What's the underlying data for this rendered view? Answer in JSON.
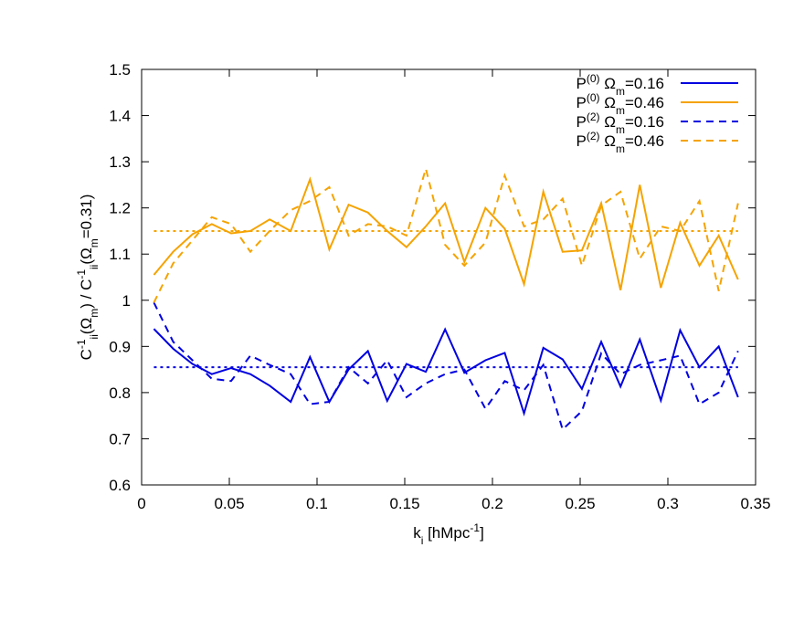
{
  "chart_data": {
    "type": "line",
    "xlabel": [
      "k",
      "i",
      " [hMpc",
      "-1",
      "]"
    ],
    "xlabel_shift": [
      "n",
      "sub",
      "n",
      "sup",
      "n"
    ],
    "ylabel": [
      "C",
      "-1",
      "ii",
      "(Ω",
      "m",
      ") / C",
      "-1",
      "ii",
      "(Ω",
      "m",
      "=0.31)"
    ],
    "ylabel_shift": [
      "n",
      "sup",
      "sub",
      "n",
      "sub",
      "n",
      "sup",
      "sub",
      "n",
      "sub",
      "n"
    ],
    "legend_shift": [
      "n",
      "sup",
      "n",
      "sub",
      "n"
    ],
    "legend": "top-right",
    "xlim": [
      0,
      0.35
    ],
    "xticks": [
      0,
      0.05,
      0.1,
      0.15,
      0.2,
      0.25,
      0.3,
      0.35
    ],
    "ylim": [
      0.6,
      1.5
    ],
    "yticks": [
      0.6,
      0.7,
      0.8,
      0.9,
      1,
      1.1,
      1.2,
      1.3,
      1.4,
      1.5
    ],
    "x": [
      0.007,
      0.018,
      0.029,
      0.04,
      0.051,
      0.062,
      0.073,
      0.085,
      0.096,
      0.107,
      0.118,
      0.129,
      0.14,
      0.151,
      0.162,
      0.173,
      0.184,
      0.196,
      0.207,
      0.218,
      0.229,
      0.24,
      0.251,
      0.262,
      0.273,
      0.284,
      0.296,
      0.307,
      0.318,
      0.329,
      0.34
    ],
    "series": [
      {
        "name": [
          "P",
          "(0)",
          " Ω",
          "m",
          "=0.16"
        ],
        "color": "#0000e0",
        "dash": "solid",
        "values": [
          0.938,
          0.895,
          0.862,
          0.84,
          0.853,
          0.84,
          0.815,
          0.78,
          0.877,
          0.78,
          0.85,
          0.89,
          0.782,
          0.862,
          0.845,
          0.937,
          0.843,
          0.87,
          0.886,
          0.755,
          0.897,
          0.872,
          0.808,
          0.91,
          0.813,
          0.915,
          0.783,
          0.935,
          0.855,
          0.9,
          0.79
        ]
      },
      {
        "name": [
          "P",
          "(0)",
          " Ω",
          "m",
          "=0.46"
        ],
        "color": "#f5a300",
        "dash": "solid",
        "values": [
          1.055,
          1.105,
          1.143,
          1.165,
          1.145,
          1.15,
          1.175,
          1.15,
          1.262,
          1.11,
          1.207,
          1.19,
          1.15,
          1.115,
          1.16,
          1.21,
          1.083,
          1.2,
          1.155,
          1.035,
          1.235,
          1.105,
          1.108,
          1.21,
          1.022,
          1.25,
          1.027,
          1.168,
          1.075,
          1.14,
          1.045
        ]
      },
      {
        "name": [
          "P",
          "(2)",
          " Ω",
          "m",
          "=0.16"
        ],
        "color": "#0000e0",
        "dash": "dashed",
        "values": [
          0.995,
          0.91,
          0.87,
          0.83,
          0.825,
          0.88,
          0.86,
          0.84,
          0.775,
          0.78,
          0.855,
          0.82,
          0.87,
          0.79,
          0.82,
          0.84,
          0.85,
          0.765,
          0.825,
          0.805,
          0.86,
          0.72,
          0.76,
          0.885,
          0.84,
          0.86,
          0.87,
          0.88,
          0.775,
          0.8,
          0.89
        ]
      },
      {
        "name": [
          "P",
          "(2)",
          " Ω",
          "m",
          "=0.46"
        ],
        "color": "#f5a300",
        "dash": "dashed",
        "values": [
          0.995,
          1.08,
          1.13,
          1.18,
          1.165,
          1.105,
          1.15,
          1.195,
          1.215,
          1.245,
          1.14,
          1.165,
          1.16,
          1.14,
          1.285,
          1.12,
          1.075,
          1.125,
          1.27,
          1.16,
          1.175,
          1.22,
          1.075,
          1.205,
          1.235,
          1.09,
          1.16,
          1.15,
          1.215,
          1.02,
          1.21
        ]
      }
    ],
    "hlines": [
      {
        "value": 1.15,
        "color": "#f5a300",
        "dash": "dotted"
      },
      {
        "value": 0.855,
        "color": "#0000e0",
        "dash": "dotted"
      }
    ]
  }
}
